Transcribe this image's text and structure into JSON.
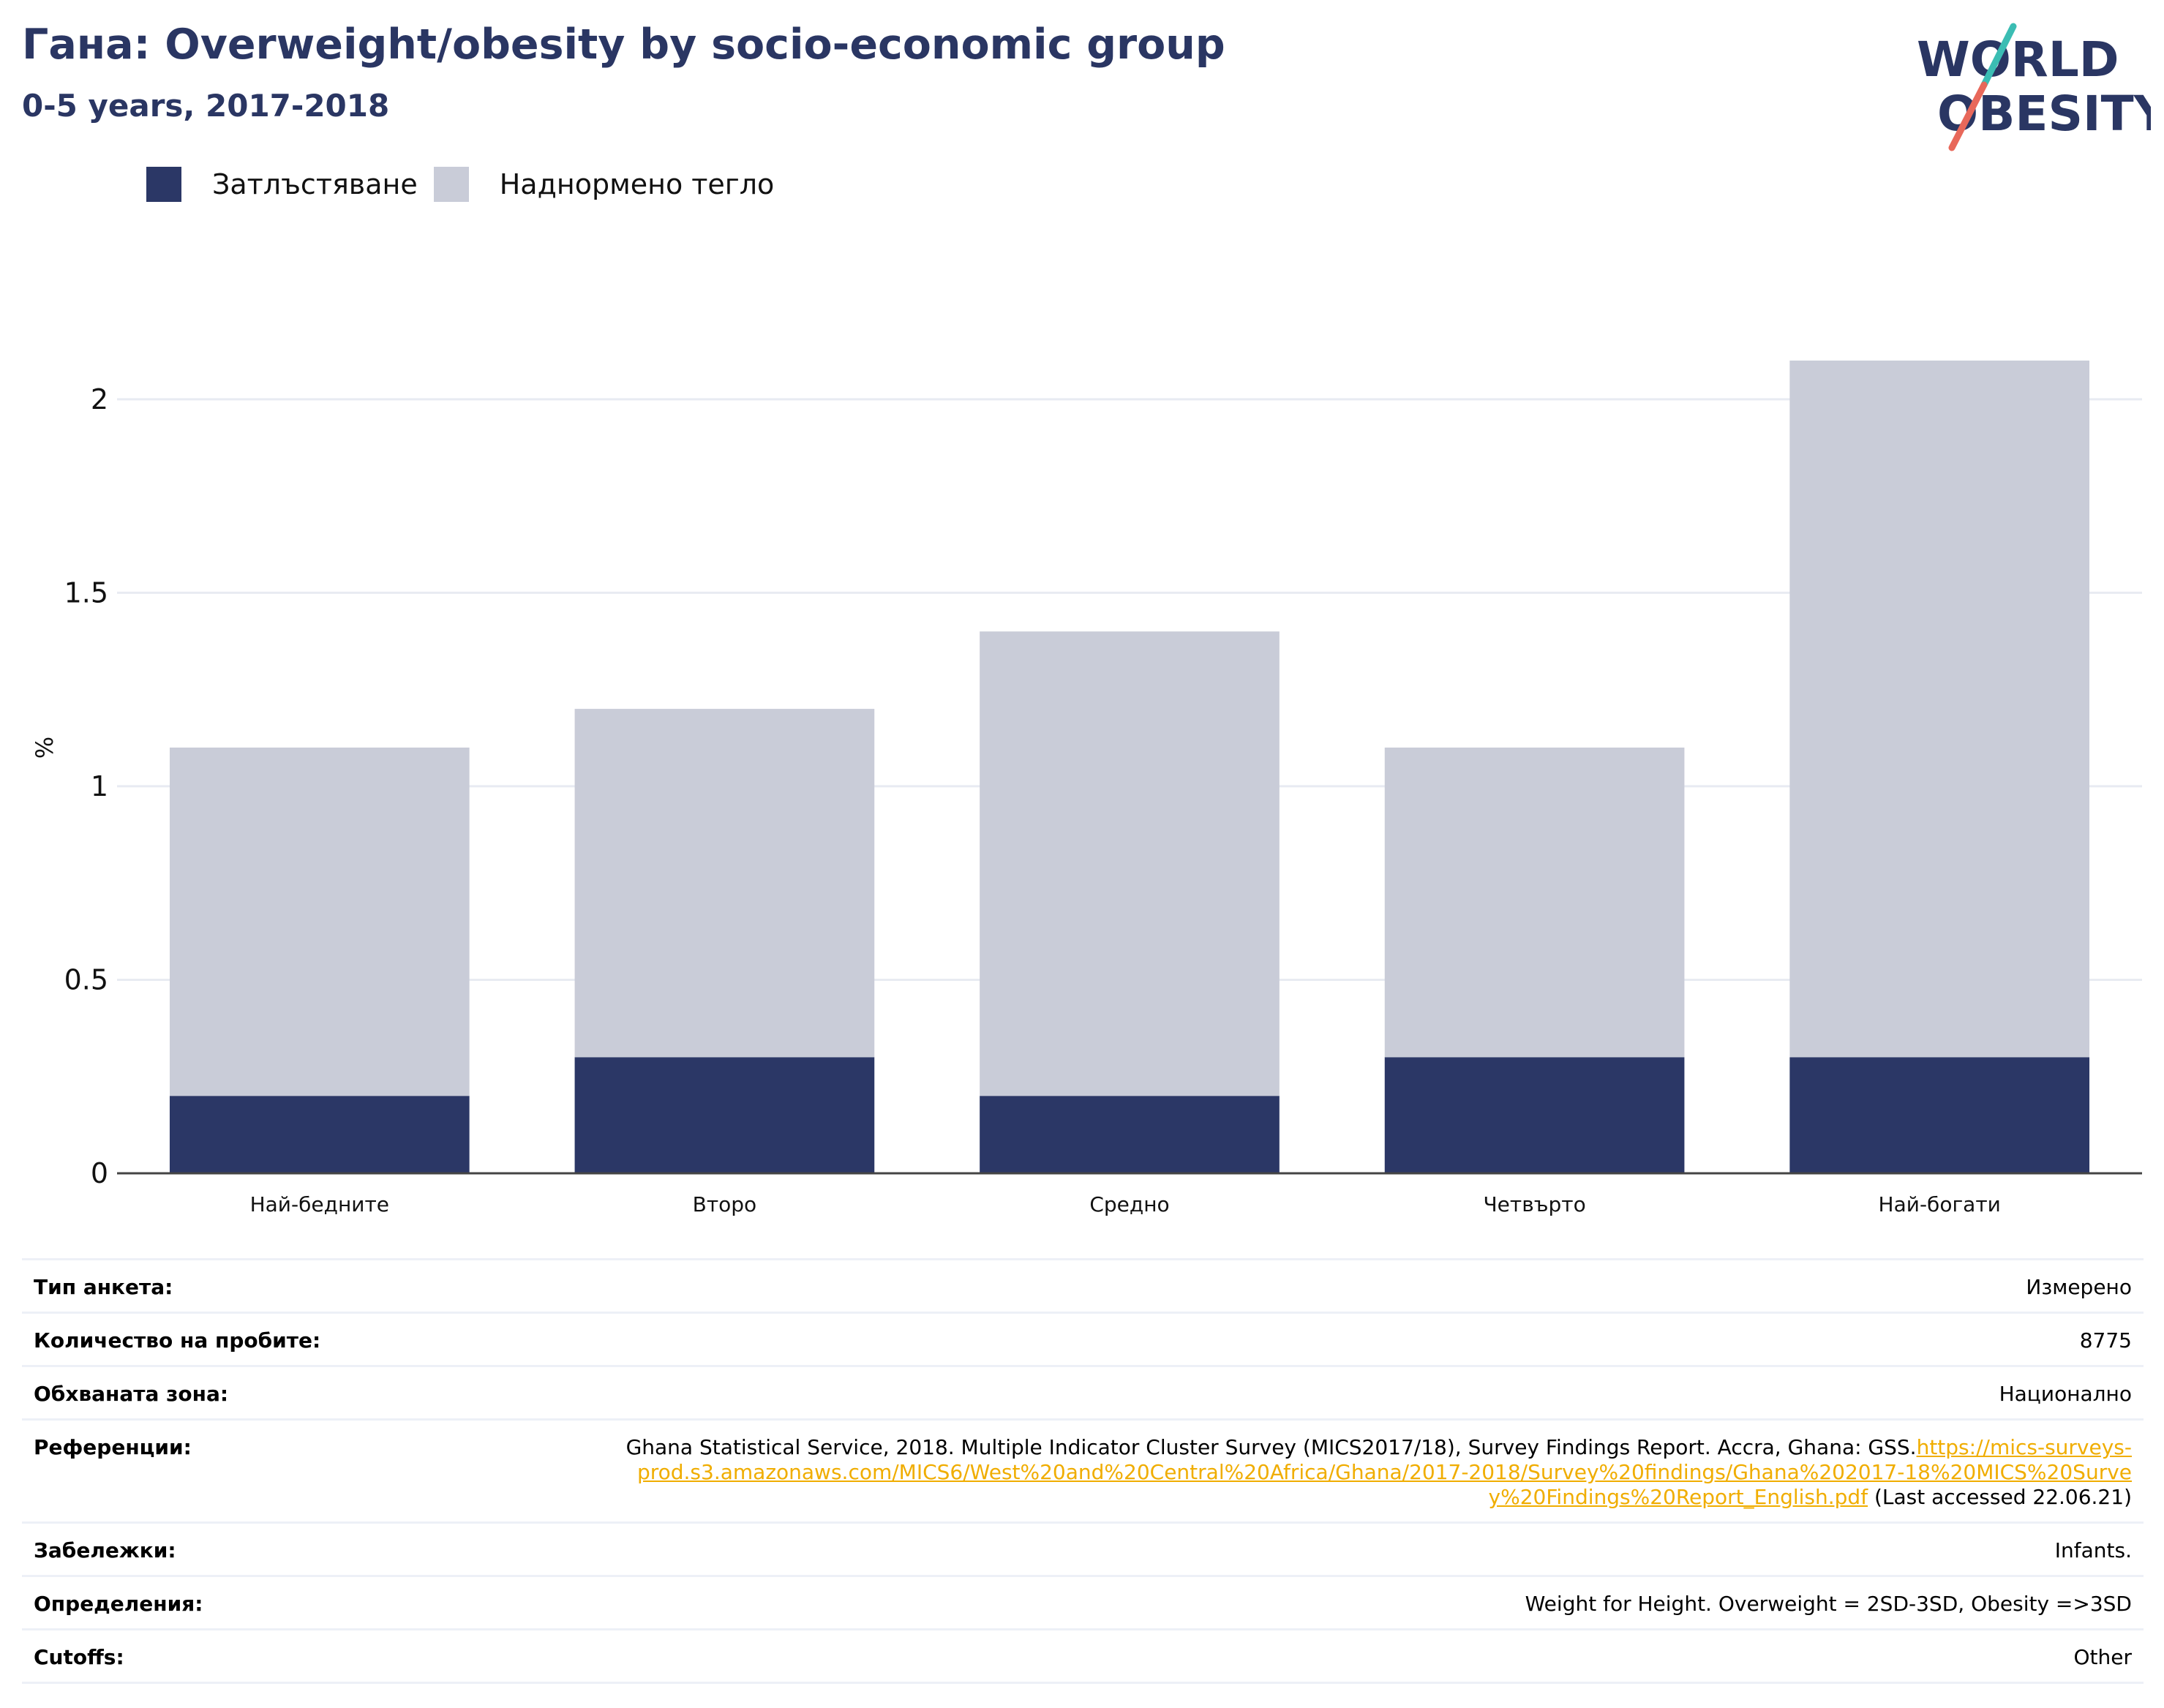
{
  "header": {
    "title": "Гана: Overweight/obesity by socio-economic group",
    "subtitle": "0-5 years, 2017-2018"
  },
  "logo": {
    "line1": "WORLD",
    "line2": "OBESITY"
  },
  "colors": {
    "obesity": "#2b3766",
    "overweight": "#c9ccd8",
    "title": "#2a3663",
    "grid": "#e8ebf2",
    "axis": "#444444",
    "link": "#f0ad00"
  },
  "chart_data": {
    "type": "bar",
    "stacked": true,
    "categories": [
      "Най-бедните",
      "Второ",
      "Средно",
      "Четвърто",
      "Най-богати"
    ],
    "series": [
      {
        "name": "Затлъстяване",
        "values": [
          0.2,
          0.3,
          0.2,
          0.3,
          0.3
        ]
      },
      {
        "name": "Наднормено тегло",
        "values": [
          0.9,
          0.9,
          1.2,
          0.8,
          1.8
        ]
      }
    ],
    "ylabel": "%",
    "ylim": [
      0,
      2.2
    ],
    "yticks": [
      0,
      0.5,
      1,
      1.5,
      2
    ],
    "ytick_labels": [
      "0",
      "0.5",
      "1",
      "1.5",
      "2"
    ],
    "grid": true,
    "legend_position": "top-left"
  },
  "info": [
    {
      "label": "Тип анкета:",
      "value": "Измерено"
    },
    {
      "label": "Количество на пробите:",
      "value": "8775"
    },
    {
      "label": "Обхваната зона:",
      "value": "Национално"
    },
    {
      "label": "Референции:",
      "value": "Ghana Statistical Service, 2018. Multiple Indicator Cluster Survey (MICS2017/18), Survey Findings Report. Accra, Ghana: GSS.",
      "link": "https://mics-surveys-prod.s3.amazonaws.com/MICS6/West%20and%20Central%20Africa/Ghana/2017-2018/Survey%20findings/Ghana%202017-18%20MICS%20Survey%20Findings%20Report_English.pdf",
      "suffix": " (Last accessed 22.06.21)"
    },
    {
      "label": "Забележки:",
      "value": "Infants."
    },
    {
      "label": "Определения:",
      "value": "Weight for Height. Overweight = 2SD-3SD, Obesity =>3SD"
    },
    {
      "label": "Cutoffs:",
      "value": "Other"
    }
  ]
}
